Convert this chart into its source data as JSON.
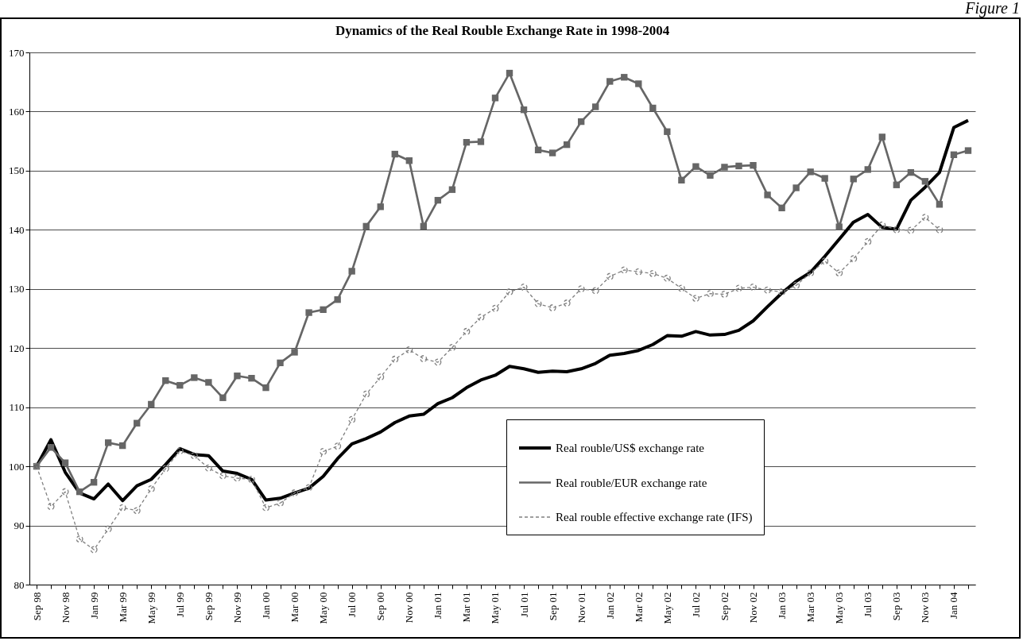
{
  "chart_data": {
    "type": "line",
    "title": "Dynamics of the Real Rouble Exchange Rate in 1998-2004",
    "annotations": [
      "Figure 1"
    ],
    "categories": [
      "Sep 98",
      null,
      "Nov 98",
      null,
      "Jan 99",
      null,
      "Mar 99",
      null,
      "May 99",
      null,
      "Jul 99",
      null,
      "Sep 99",
      null,
      "Nov 99",
      null,
      "Jan 00",
      null,
      "Mar 00",
      null,
      "May 00",
      null,
      "Jul 00",
      null,
      "Sep 00",
      null,
      "Nov 00",
      null,
      "Jan 01",
      null,
      "Mar 01",
      null,
      "May 01",
      null,
      "Jul 01",
      null,
      "Sep 01",
      null,
      "Nov 01",
      null,
      "Jan 02",
      null,
      "Mar 02",
      null,
      "May 02",
      null,
      "Jul 02",
      null,
      "Sep 02",
      null,
      "Nov 02",
      null,
      "Jan 03",
      null,
      "Mar 03",
      null,
      "May 03",
      null,
      "Jul 03",
      null,
      "Sep 03",
      null,
      "Nov 03",
      null,
      "Jan 04",
      null
    ],
    "series": [
      {
        "name": "Real rouble/US$ exchange rate",
        "color": "#000000",
        "marker": "none",
        "line_style": "solid",
        "values": [
          100,
          104.5,
          99,
          95.5,
          94.5,
          97,
          94.2,
          96.7,
          97.8,
          100.3,
          103,
          102,
          101.8,
          99.2,
          98.8,
          97.8,
          94.3,
          94.6,
          95.5,
          96.3,
          98.3,
          101.3,
          103.8,
          104.7,
          105.8,
          107.4,
          108.5,
          108.8,
          110.6,
          111.6,
          113.3,
          114.6,
          115.4,
          116.9,
          116.5,
          115.9,
          116.1,
          116.0,
          116.5,
          117.4,
          118.8,
          119.1,
          119.6,
          120.6,
          122.1,
          122.0,
          122.8,
          122.2,
          122.3,
          123.0,
          124.6,
          127.0,
          129.3,
          131.3,
          132.8,
          135.5,
          138.4,
          141.3,
          142.6,
          140.4,
          140.1,
          145.0,
          147.2,
          149.7,
          157.3,
          158.5
        ]
      },
      {
        "name": "Real rouble/EUR exchange rate",
        "color": "#666666",
        "marker": "square",
        "line_style": "solid",
        "values": [
          100,
          103.2,
          100.6,
          95.7,
          97.3,
          104,
          103.5,
          107.3,
          110.5,
          114.5,
          113.7,
          115,
          114.2,
          111.6,
          115.3,
          114.9,
          113.3,
          117.5,
          119.3,
          126,
          126.5,
          128.2,
          133,
          140.6,
          143.9,
          152.8,
          151.7,
          140.6,
          145,
          146.8,
          154.8,
          154.9,
          162.3,
          166.5,
          160.3,
          153.5,
          153,
          154.4,
          158.3,
          160.8,
          165.1,
          165.8,
          164.7,
          160.6,
          156.6,
          148.4,
          150.7,
          149.2,
          150.6,
          150.8,
          150.9,
          145.9,
          143.7,
          147.1,
          149.8,
          148.7,
          140.5,
          148.6,
          150.2,
          155.7,
          147.6,
          149.7,
          148.2,
          144.3,
          152.7,
          153.4
        ]
      },
      {
        "name": "Real rouble effective exchange rate (IFS)",
        "color": "#808080",
        "marker": "circle",
        "line_style": "dashed",
        "values": [
          100,
          93.2,
          95.7,
          87.7,
          85.9,
          89.4,
          93,
          92.5,
          96.2,
          99.6,
          102.6,
          101.8,
          99.7,
          98.4,
          98,
          97.8,
          93,
          93.8,
          95.5,
          96.4,
          102.5,
          103.4,
          107.9,
          112.2,
          115.1,
          118.1,
          119.7,
          118.2,
          117.6,
          120.1,
          122.8,
          125.2,
          126.7,
          129.5,
          130.3,
          127.5,
          126.8,
          127.6,
          130,
          129.7,
          132.1,
          133.2,
          132.9,
          132.6,
          131.8,
          130.1,
          128.4,
          129.2,
          129.1,
          130.1,
          130.3,
          129.8,
          129.5,
          130.6,
          132.7,
          134.7,
          132.7,
          135.1,
          138,
          140.8,
          140,
          139.9,
          142.1,
          140,
          null,
          null
        ]
      }
    ],
    "ylim": [
      80,
      170
    ],
    "yticks": [
      80,
      90,
      100,
      110,
      120,
      130,
      140,
      150,
      160,
      170
    ],
    "grid": "y",
    "legend": "bottom right"
  }
}
